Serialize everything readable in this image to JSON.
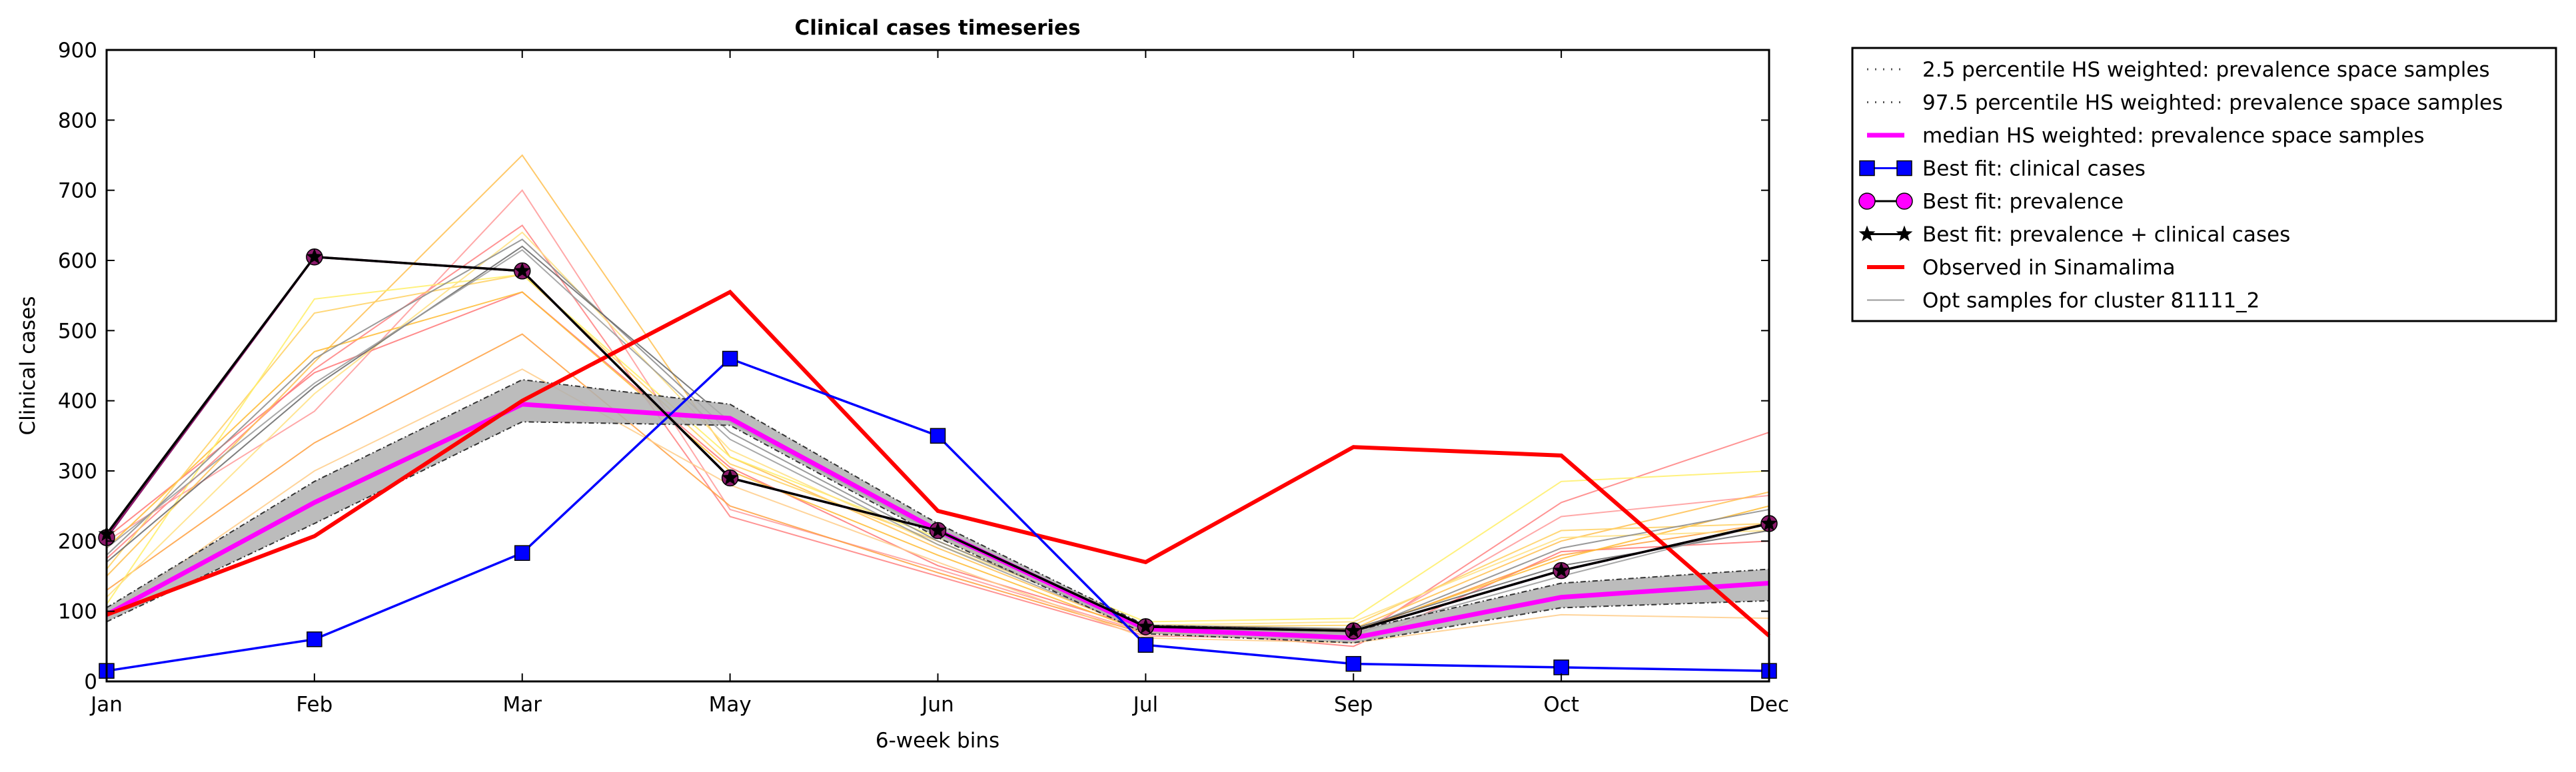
{
  "chart_data": {
    "type": "line",
    "title": "Clinical cases timeseries",
    "xlabel": "6-week bins",
    "ylabel": "Clinical cases",
    "categories": [
      "Jan",
      "Feb",
      "Mar",
      "May",
      "Jun",
      "Jul",
      "Sep",
      "Oct",
      "Dec"
    ],
    "ylim": [
      0,
      900
    ],
    "yticks": [
      "0",
      "100",
      "200",
      "300",
      "400",
      "500",
      "600",
      "700",
      "800",
      "900"
    ],
    "grid": false,
    "legend_position": "outside-right",
    "band": {
      "lower_name": "2.5 percentile HS weighted: prevalence space samples",
      "upper_name": "97.5 percentile HS weighted: prevalence space samples",
      "lower": [
        85,
        225,
        370,
        365,
        205,
        68,
        55,
        105,
        115
      ],
      "upper": [
        105,
        285,
        430,
        395,
        225,
        80,
        72,
        140,
        160
      ],
      "fill": "#b0b0b0"
    },
    "samples": {
      "name": "Opt samples for cluster 81111_2",
      "lines": [
        {
          "color": "#ff8080",
          "values": [
            175,
            445,
            650,
            235,
            150,
            65,
            60,
            255,
            355
          ]
        },
        {
          "color": "#ff9999",
          "values": [
            200,
            385,
            700,
            245,
            160,
            70,
            65,
            235,
            265
          ]
        },
        {
          "color": "#ff7777",
          "values": [
            205,
            440,
            555,
            305,
            165,
            75,
            50,
            185,
            200
          ]
        },
        {
          "color": "#ffa040",
          "values": [
            130,
            340,
            495,
            250,
            155,
            68,
            70,
            180,
            225
          ]
        },
        {
          "color": "#ffc050",
          "values": [
            150,
            455,
            750,
            320,
            190,
            72,
            75,
            200,
            270
          ]
        },
        {
          "color": "#ffbb33",
          "values": [
            190,
            470,
            555,
            300,
            180,
            70,
            72,
            175,
            250
          ]
        },
        {
          "color": "#ffd060",
          "values": [
            160,
            525,
            580,
            310,
            200,
            78,
            80,
            215,
            225
          ]
        },
        {
          "color": "#ffee66",
          "values": [
            110,
            545,
            580,
            320,
            205,
            85,
            90,
            285,
            300
          ]
        },
        {
          "color": "#ffe080",
          "values": [
            120,
            410,
            640,
            330,
            195,
            80,
            85,
            205,
            215
          ]
        },
        {
          "color": "#ffcc88",
          "values": [
            95,
            300,
            445,
            280,
            170,
            62,
            55,
            95,
            90
          ]
        },
        {
          "color": "#888888",
          "values": [
            180,
            460,
            630,
            355,
            200,
            75,
            70,
            190,
            245
          ]
        },
        {
          "color": "#666666",
          "values": [
            170,
            420,
            620,
            370,
            210,
            80,
            75,
            165,
            215
          ]
        },
        {
          "color": "#999999",
          "values": [
            190,
            425,
            615,
            345,
            195,
            72,
            68,
            150,
            225
          ]
        }
      ]
    },
    "series": [
      {
        "name": "median HS weighted: prevalence space samples",
        "color": "#ff00ff",
        "values": [
          95,
          255,
          395,
          375,
          215,
          75,
          62,
          120,
          140
        ]
      },
      {
        "name": "Best fit: clinical cases",
        "color": "#0000ff",
        "marker": "square",
        "values": [
          15,
          60,
          183,
          460,
          350,
          52,
          25,
          20,
          15
        ]
      },
      {
        "name": "Best fit: prevalence",
        "color": "#8b1a6b",
        "marker": "circle",
        "values": [
          205,
          605,
          585,
          290,
          215,
          78,
          72,
          158,
          225
        ]
      },
      {
        "name": "Best fit: prevalence + clinical cases",
        "color": "#000000",
        "marker": "star",
        "values": [
          210,
          605,
          585,
          290,
          215,
          78,
          72,
          158,
          225
        ]
      },
      {
        "name": "Observed in Sinamalima",
        "color": "#ff0000",
        "values": [
          95,
          207,
          400,
          555,
          243,
          170,
          334,
          322,
          65
        ]
      }
    ]
  },
  "legend": [
    {
      "key": "lower",
      "label": "2.5 percentile HS weighted: prevalence space samples"
    },
    {
      "key": "upper",
      "label": "97.5 percentile HS weighted: prevalence space samples"
    },
    {
      "key": "median",
      "label": "median HS weighted: prevalence space samples"
    },
    {
      "key": "bf-clinical",
      "label": "Best fit: clinical cases"
    },
    {
      "key": "bf-prev",
      "label": "Best fit: prevalence"
    },
    {
      "key": "bf-both",
      "label": "Best fit: prevalence + clinical cases"
    },
    {
      "key": "observed",
      "label": "Observed in Sinamalima"
    },
    {
      "key": "samples",
      "label": "Opt samples for cluster 81111_2"
    }
  ]
}
